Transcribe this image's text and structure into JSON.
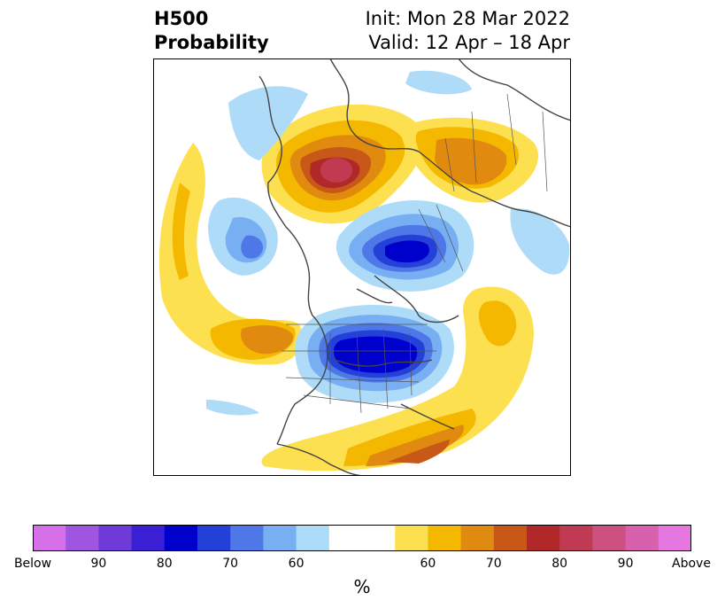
{
  "header": {
    "variable": "H500",
    "product": "Probability",
    "init": "Init: Mon 28 Mar 2022",
    "valid": "Valid: 12 Apr – 18 Apr"
  },
  "colorbar": {
    "colors": [
      "#d670e8",
      "#9e56e0",
      "#6f3ad8",
      "#3a1fd4",
      "#0000cc",
      "#2340d8",
      "#4e77e8",
      "#78aff2",
      "#aedcf8",
      "#ffffff",
      "#ffffff",
      "#fde050",
      "#f4b800",
      "#e08a10",
      "#c85818",
      "#b02828",
      "#c03a52",
      "#cc5080",
      "#d860ae",
      "#e676e0"
    ],
    "labels": [
      "Below",
      "90",
      "80",
      "70",
      "60",
      "",
      "60",
      "70",
      "80",
      "90",
      "Above"
    ],
    "unit": "%"
  },
  "legend_colors": {
    "below_light": "#aedcf8",
    "below_mid": "#78aff2",
    "below_deep": "#0000cc",
    "above_light": "#fde050",
    "above_mid": "#f4b800",
    "above_deep": "#b02828",
    "above_peak": "#c03a52"
  }
}
